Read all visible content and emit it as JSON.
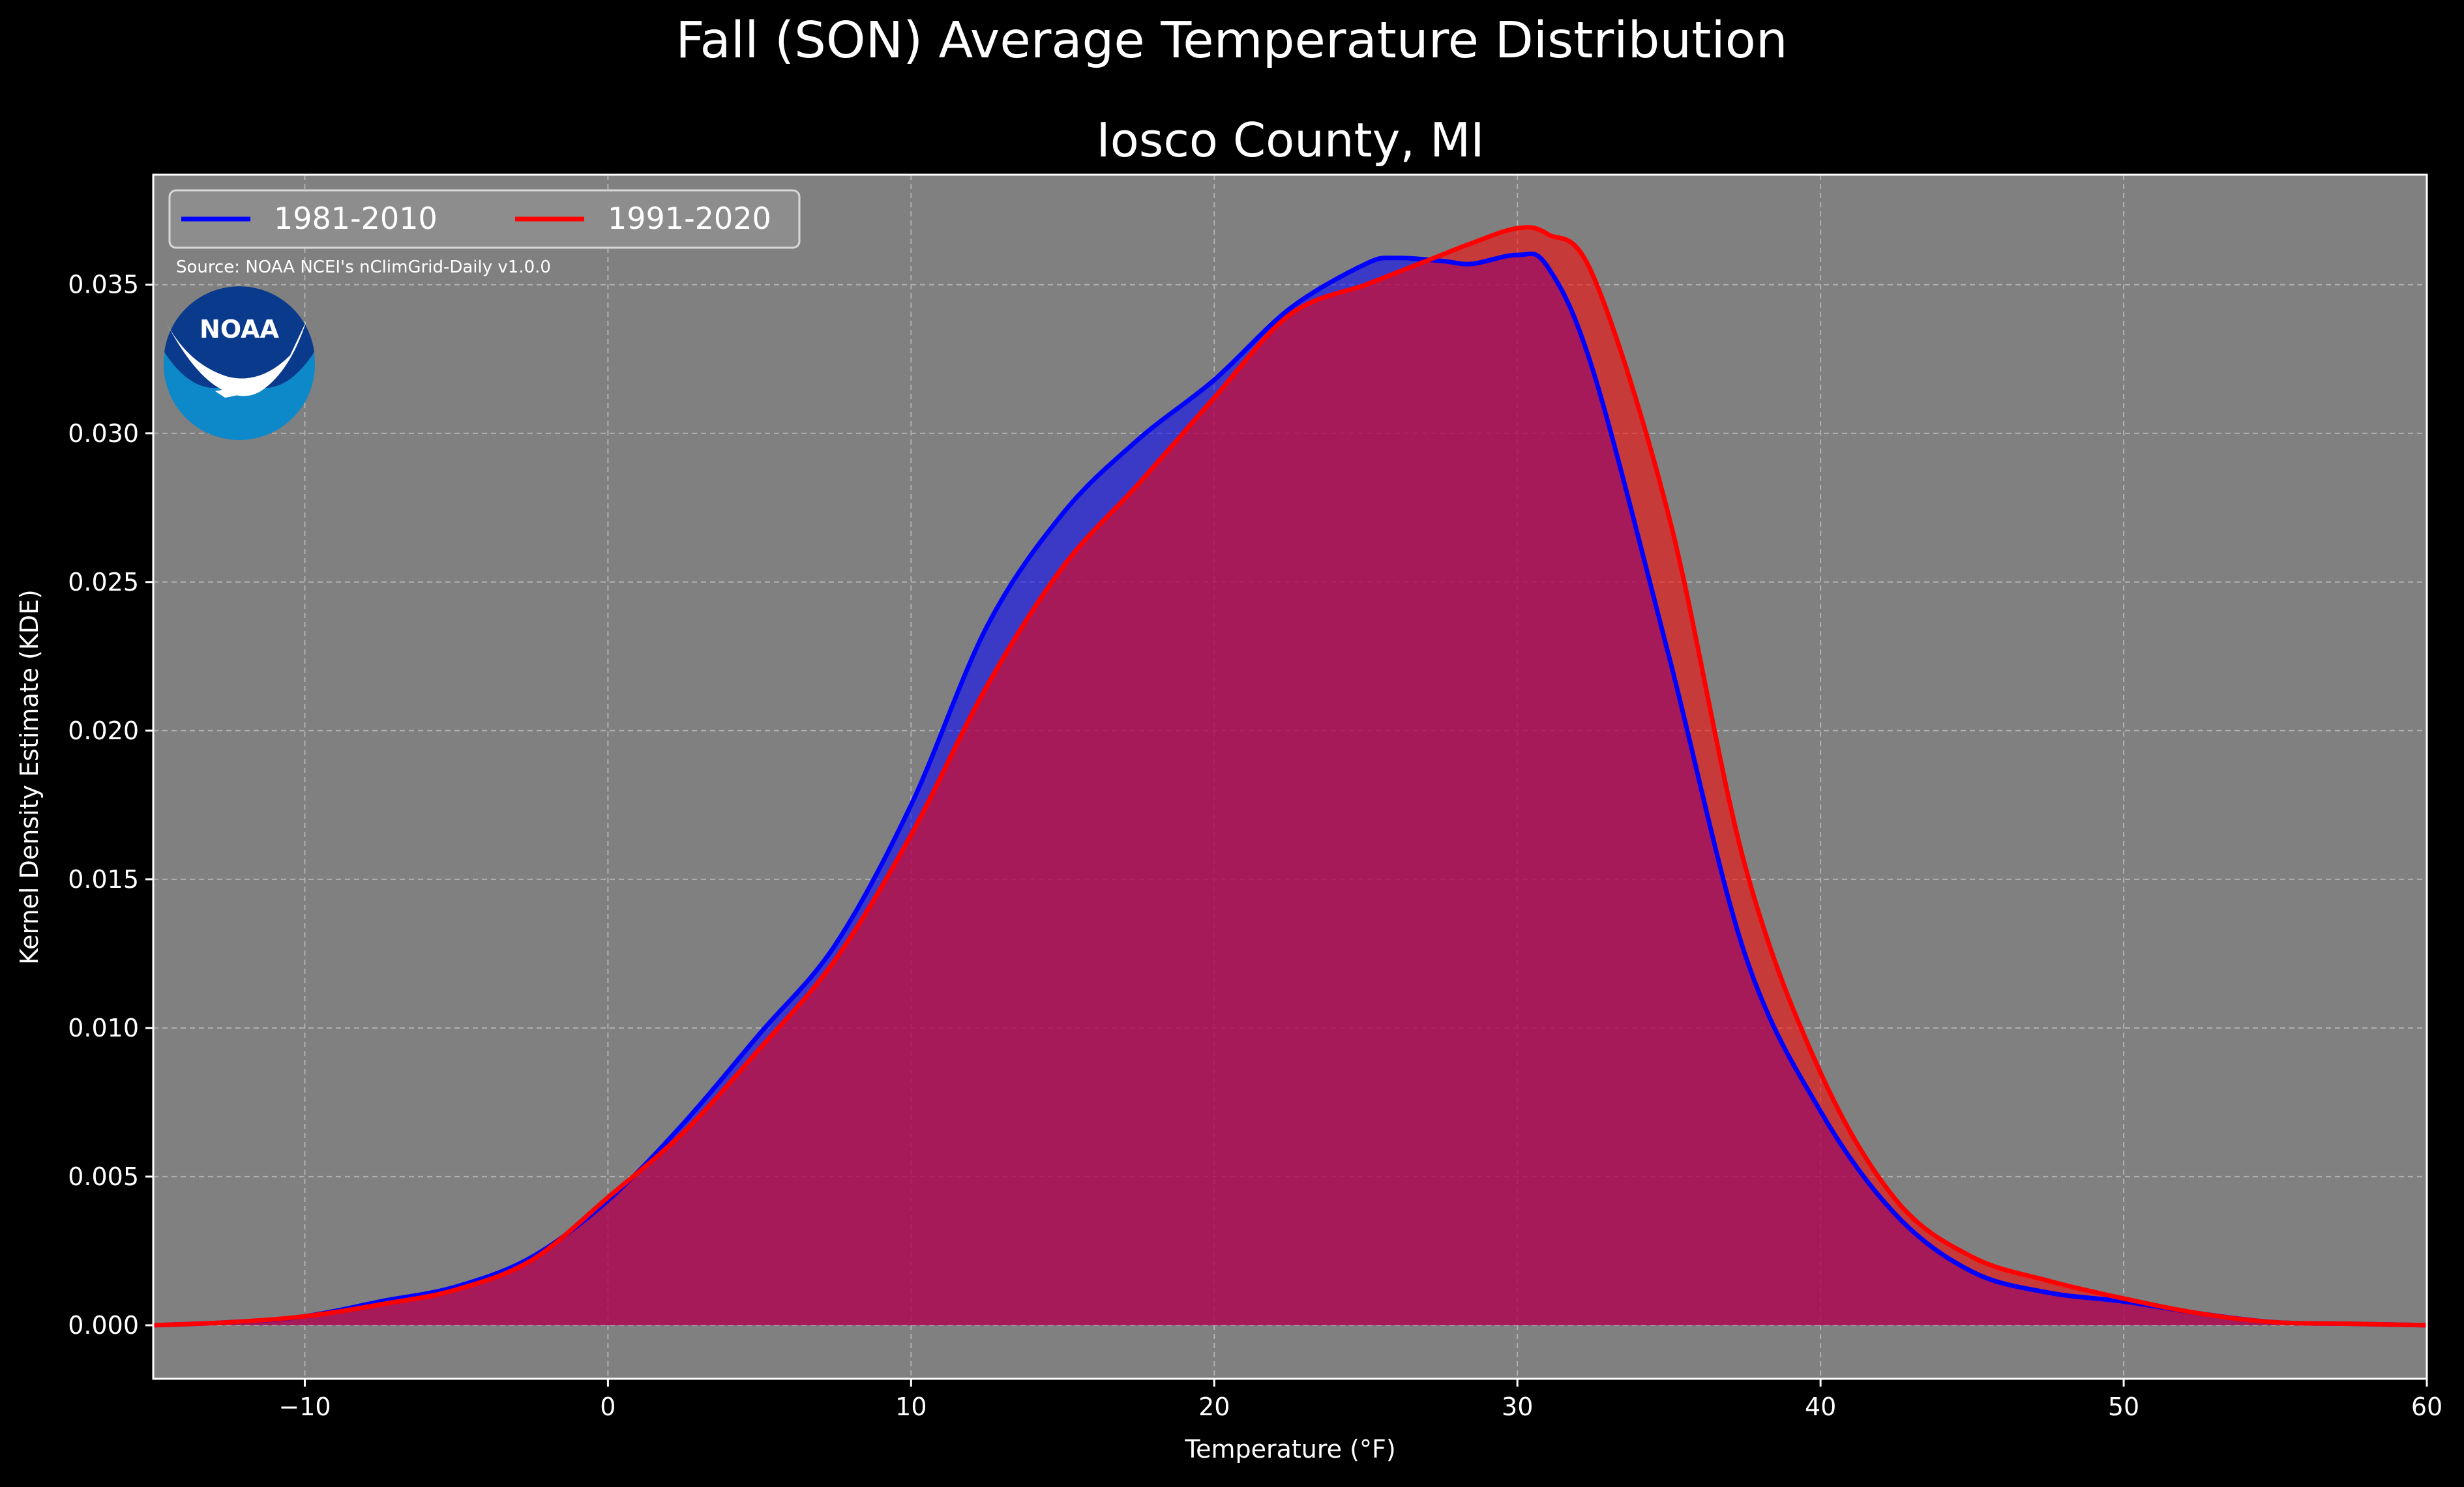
{
  "chart_data": {
    "type": "area",
    "title": "Fall (SON) Average Temperature Distribution",
    "subtitle": "Iosco County, MI",
    "xlabel": "Temperature ($^\\circ$F)",
    "xlabel_display": "Temperature (°F)",
    "ylabel": "Kernel Density Estimate (KDE)",
    "xlim": [
      -15,
      60
    ],
    "ylim": [
      -0.0018,
      0.0387
    ],
    "x_ticks": [
      -10,
      0,
      10,
      20,
      30,
      40,
      50,
      60
    ],
    "x_tick_labels": [
      "−10",
      "0",
      "10",
      "20",
      "30",
      "40",
      "50",
      "60"
    ],
    "y_ticks": [
      0.0,
      0.005,
      0.01,
      0.015,
      0.02,
      0.025,
      0.03,
      0.035
    ],
    "y_tick_labels": [
      "0.000",
      "0.005",
      "0.010",
      "0.015",
      "0.020",
      "0.025",
      "0.030",
      "0.035"
    ],
    "grid": true,
    "legend_placement": "top-left",
    "source_note": "Source: NOAA NCEI's nClimGrid-Daily v1.0.0",
    "logo_text": "NOAA",
    "colors": {
      "figure_background": "#000000",
      "axes_background": "#808080",
      "grid": "#b0b0b0",
      "text": "#ffffff",
      "merged_fill": "#9e1f5c",
      "noaa_dark_blue": "#0a3a8c",
      "noaa_light_blue": "#0d88c9"
    },
    "x": [
      -15,
      -12.5,
      -10,
      -7.5,
      -5,
      -2.5,
      0,
      2.5,
      5,
      7.5,
      10,
      12.5,
      15,
      17.5,
      20,
      22.5,
      25,
      26,
      27.5,
      28.5,
      30,
      31,
      32.5,
      35,
      37.5,
      40,
      42.5,
      45,
      47.5,
      50,
      52.5,
      55,
      57.5,
      60
    ],
    "series": [
      {
        "name": "1981-2010",
        "color": "#0000ff",
        "fill": "#0000ff",
        "fill_opacity": 0.55,
        "values": [
          0.0,
          0.0001,
          0.0003,
          0.0008,
          0.0013,
          0.0023,
          0.0042,
          0.0068,
          0.0098,
          0.0128,
          0.0175,
          0.0235,
          0.0273,
          0.0298,
          0.0318,
          0.0342,
          0.0357,
          0.0359,
          0.0358,
          0.0357,
          0.036,
          0.0356,
          0.0321,
          0.0225,
          0.0125,
          0.0072,
          0.0037,
          0.0018,
          0.0011,
          0.0008,
          0.0004,
          0.0001,
          5e-05,
          0.0
        ]
      },
      {
        "name": "1991-2020",
        "color": "#ff0000",
        "fill": "#ff0000",
        "fill_opacity": 0.55,
        "values": [
          0.0,
          0.0001,
          0.0003,
          0.0007,
          0.0012,
          0.0022,
          0.0043,
          0.0065,
          0.0093,
          0.0123,
          0.0165,
          0.0215,
          0.0255,
          0.0283,
          0.0312,
          0.034,
          0.035,
          0.0354,
          0.036,
          0.0364,
          0.0369,
          0.0367,
          0.0353,
          0.0272,
          0.0155,
          0.0085,
          0.0042,
          0.0023,
          0.0015,
          0.0009,
          0.0004,
          0.0001,
          5e-05,
          0.0
        ]
      }
    ]
  }
}
